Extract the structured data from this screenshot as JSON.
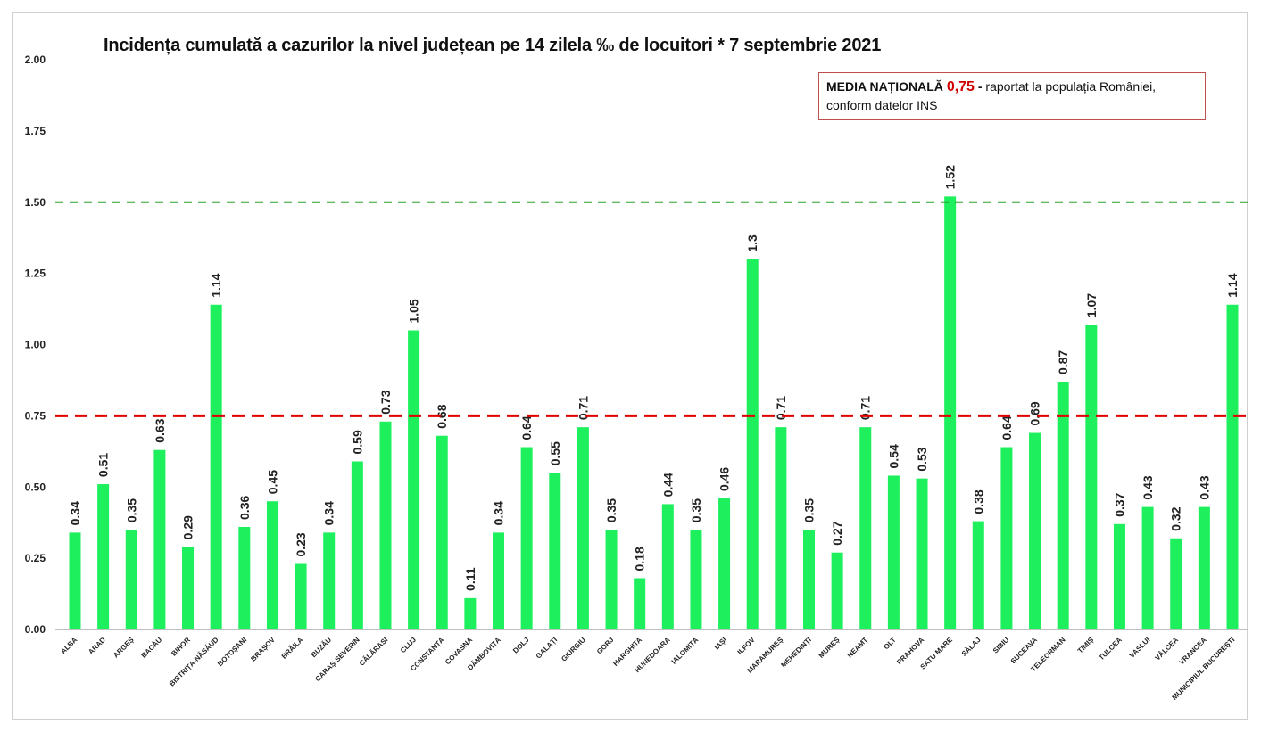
{
  "chart_data": {
    "type": "bar",
    "title": "Incidența cumulată a cazurilor la nivel județean pe 14 zilela ‰ de locuitori * 7 septembrie 2021",
    "xlabel": "",
    "ylabel": "",
    "ylim": [
      0,
      2
    ],
    "yticks": [
      "0.00",
      "0.25",
      "0.50",
      "0.75",
      "1.00",
      "1.25",
      "1.50",
      "1.75",
      "2.00"
    ],
    "categories": [
      "ALBA",
      "ARAD",
      "ARGEȘ",
      "BACĂU",
      "BIHOR",
      "BISTRIȚA-NĂSĂUD",
      "BOTOȘANI",
      "BRAȘOV",
      "BRĂILA",
      "BUZĂU",
      "CARAȘ-SEVERIN",
      "CĂLĂRAȘI",
      "CLUJ",
      "CONSTANȚA",
      "COVASNA",
      "DÂMBOVIȚA",
      "DOLJ",
      "GALAȚI",
      "GIURGIU",
      "GORJ",
      "HARGHITA",
      "HUNEDOARA",
      "IALOMIȚA",
      "IAȘI",
      "ILFOV",
      "MARAMUREȘ",
      "MEHEDINȚI",
      "MUREȘ",
      "NEAMȚ",
      "OLT",
      "PRAHOVA",
      "SATU MARE",
      "SĂLAJ",
      "SIBIU",
      "SUCEAVA",
      "TELEORMAN",
      "TIMIȘ",
      "TULCEA",
      "VASLUI",
      "VÂLCEA",
      "VRANCEA",
      "MUNICIPIUL BUCUREȘTI"
    ],
    "values": [
      0.34,
      0.51,
      0.35,
      0.63,
      0.29,
      1.14,
      0.36,
      0.45,
      0.23,
      0.34,
      0.59,
      0.73,
      1.05,
      0.68,
      0.11,
      0.34,
      0.64,
      0.55,
      0.71,
      0.35,
      0.18,
      0.44,
      0.35,
      0.46,
      1.3,
      0.71,
      0.35,
      0.27,
      0.71,
      0.54,
      0.53,
      1.52,
      0.38,
      0.64,
      0.69,
      0.87,
      1.07,
      0.37,
      0.43,
      0.32,
      0.43,
      1.14
    ],
    "value_labels": [
      "0.34",
      "0.51",
      "0.35",
      "0.63",
      "0.29",
      "1.14",
      "0.36",
      "0.45",
      "0.23",
      "0.34",
      "0.59",
      "0.73",
      "1.05",
      "0.68",
      "0.11",
      "0.34",
      "0.64",
      "0.55",
      "0.71",
      "0.35",
      "0.18",
      "0.44",
      "0.35",
      "0.46",
      "1.3",
      "0.71",
      "0.35",
      "0.27",
      "0.71",
      "0.54",
      "0.53",
      "1.52",
      "0.38",
      "0.64",
      "0.69",
      "0.87",
      "1.07",
      "0.37",
      "0.43",
      "0.32",
      "0.43",
      "1.14"
    ],
    "reference_lines": [
      {
        "name": "prag-1.5",
        "value": 1.5,
        "color": "#2ca02c",
        "style": "dashed"
      },
      {
        "name": "media-nationala",
        "value": 0.75,
        "color": "#e00000",
        "style": "dashed"
      }
    ],
    "bar_color": "#1df05c",
    "grid": false,
    "legend": "none"
  },
  "annotation": {
    "lead": "MEDIA NAȚIONALĂ",
    "value": "0,75",
    "dash": "-",
    "text": "raportat la populația României, conform datelor INS"
  }
}
